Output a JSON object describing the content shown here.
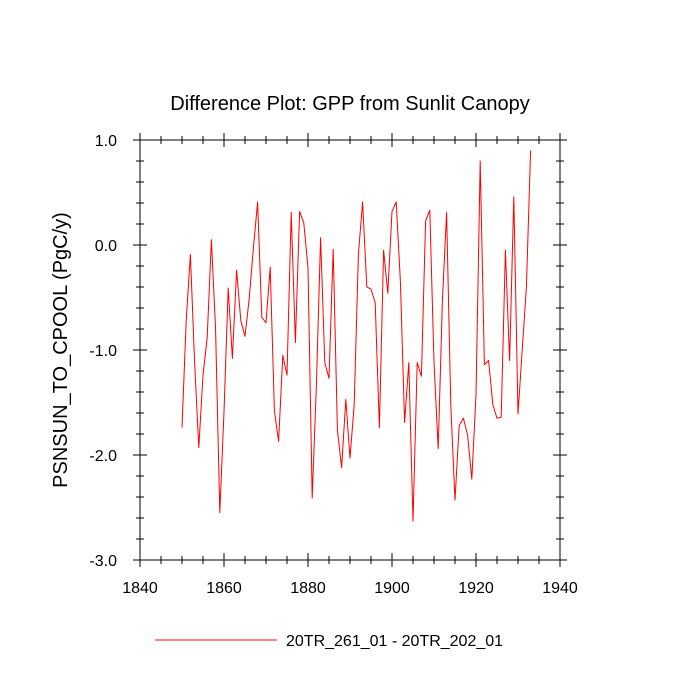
{
  "chart_data": {
    "type": "line",
    "title": "Difference Plot: GPP from Sunlit Canopy",
    "xlabel": "",
    "ylabel": "PSNSUN_TO_CPOOL  (PgC/y)",
    "xlim": [
      1840,
      1940
    ],
    "ylim": [
      -3.0,
      1.0
    ],
    "x_ticks": [
      1840,
      1860,
      1880,
      1900,
      1920,
      1940
    ],
    "x_tick_labels": [
      "1840",
      "1860",
      "1880",
      "1900",
      "1920",
      "1940"
    ],
    "y_ticks": [
      -3.0,
      -2.0,
      -1.0,
      0.0,
      1.0
    ],
    "y_tick_labels": [
      "-3.0",
      "-2.0",
      "-1.0",
      "0.0",
      "1.0"
    ],
    "grid": false,
    "legend_position": "bottom",
    "series": [
      {
        "name": "20TR_261_01 - 20TR_202_01",
        "color": "#ff0000",
        "x": [
          1850,
          1851,
          1852,
          1853,
          1854,
          1855,
          1856,
          1857,
          1858,
          1859,
          1860,
          1861,
          1862,
          1863,
          1864,
          1865,
          1866,
          1867,
          1868,
          1869,
          1870,
          1871,
          1872,
          1873,
          1874,
          1875,
          1876,
          1877,
          1878,
          1879,
          1880,
          1881,
          1882,
          1883,
          1884,
          1885,
          1886,
          1887,
          1888,
          1889,
          1890,
          1891,
          1892,
          1893,
          1894,
          1895,
          1896,
          1897,
          1898,
          1899,
          1900,
          1901,
          1902,
          1903,
          1904,
          1905,
          1906,
          1907,
          1908,
          1909,
          1910,
          1911,
          1912,
          1913,
          1914,
          1915,
          1916,
          1917,
          1918,
          1919,
          1920,
          1921,
          1922,
          1923,
          1924,
          1925,
          1926,
          1927,
          1928,
          1929,
          1930,
          1931,
          1932,
          1933
        ],
        "values": [
          -1.74,
          -0.72,
          -0.09,
          -1.12,
          -1.93,
          -1.24,
          -0.88,
          0.05,
          -0.81,
          -2.55,
          -1.59,
          -0.41,
          -1.08,
          -0.24,
          -0.72,
          -0.87,
          -0.51,
          -0.03,
          0.41,
          -0.69,
          -0.74,
          -0.21,
          -1.58,
          -1.87,
          -1.05,
          -1.24,
          0.31,
          -0.93,
          0.32,
          0.21,
          -0.22,
          -2.41,
          -1.33,
          0.07,
          -1.12,
          -1.27,
          -0.04,
          -1.76,
          -2.12,
          -1.47,
          -2.03,
          -1.52,
          -0.09,
          0.41,
          -0.4,
          -0.42,
          -0.55,
          -1.74,
          -0.05,
          -0.46,
          0.32,
          0.41,
          -0.35,
          -1.69,
          -1.12,
          -2.63,
          -1.12,
          -1.25,
          0.23,
          0.33,
          -1.12,
          -1.94,
          -0.53,
          0.31,
          -1.53,
          -2.43,
          -1.72,
          -1.65,
          -1.81,
          -2.23,
          -1.43,
          0.8,
          -1.14,
          -1.1,
          -1.52,
          -1.65,
          -1.64,
          -0.05,
          -1.1,
          0.46,
          -1.61,
          -1.0,
          -0.4,
          0.9
        ]
      }
    ]
  }
}
